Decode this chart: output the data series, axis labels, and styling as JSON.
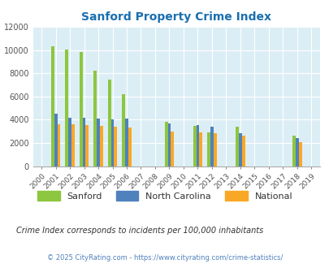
{
  "title": "Sanford Property Crime Index",
  "years": [
    2000,
    2001,
    2002,
    2003,
    2004,
    2005,
    2006,
    2007,
    2008,
    2009,
    2010,
    2011,
    2012,
    2013,
    2014,
    2015,
    2016,
    2017,
    2018,
    2019
  ],
  "sanford": [
    null,
    10300,
    10050,
    9800,
    8200,
    7450,
    6200,
    null,
    null,
    3800,
    null,
    3450,
    2900,
    null,
    3400,
    null,
    null,
    null,
    2600,
    null
  ],
  "north_carolina": [
    null,
    4500,
    4200,
    4200,
    4100,
    4050,
    4100,
    null,
    null,
    3700,
    null,
    3550,
    3400,
    null,
    2850,
    null,
    null,
    null,
    2450,
    null
  ],
  "national": [
    null,
    3600,
    3600,
    3550,
    3500,
    3400,
    3300,
    null,
    null,
    3000,
    null,
    2900,
    2850,
    null,
    2600,
    null,
    null,
    null,
    2100,
    null
  ],
  "sanford_color": "#8dc63f",
  "nc_color": "#4f81bd",
  "national_color": "#f9a825",
  "bg_color": "#dceef5",
  "grid_color": "#ffffff",
  "ylim": [
    0,
    12000
  ],
  "yticks": [
    0,
    2000,
    4000,
    6000,
    8000,
    10000,
    12000
  ],
  "footnote1": "Crime Index corresponds to incidents per 100,000 inhabitants",
  "footnote2": "© 2025 CityRating.com - https://www.cityrating.com/crime-statistics/",
  "title_color": "#1a6faf",
  "footnote1_color": "#333333",
  "footnote2_color": "#4f81bd"
}
